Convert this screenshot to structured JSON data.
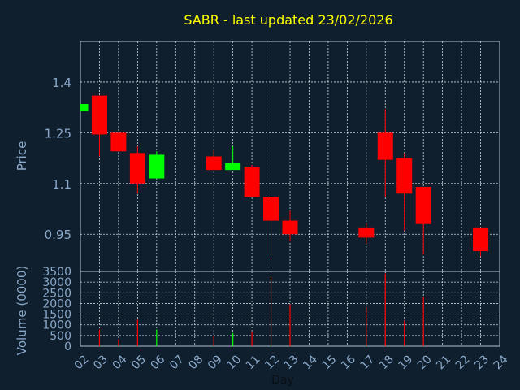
{
  "colors": {
    "background": "#0f1f2e",
    "title": "#ffff00",
    "axis_text": "#8aa8c8",
    "grid": "#cfd6de",
    "up": "#00ff00",
    "down": "#ff0000"
  },
  "chart_data": {
    "type": "candlestick",
    "title": "SABR - last updated 23/02/2026",
    "xlabel": "Day",
    "price_ylabel": "Price",
    "volume_ylabel": "Volume (0000)",
    "x_ticks": [
      "02",
      "03",
      "04",
      "05",
      "06",
      "07",
      "08",
      "09",
      "10",
      "11",
      "12",
      "13",
      "14",
      "15",
      "16",
      "17",
      "18",
      "19",
      "20",
      "21",
      "22",
      "23",
      "24"
    ],
    "price_ticks": [
      "1.4",
      "1.25",
      "1.1",
      "0.95"
    ],
    "price_tick_values": [
      1.4,
      1.25,
      1.1,
      0.95
    ],
    "price_ylim": [
      0.84,
      1.52
    ],
    "volume_ticks": [
      "3500",
      "3000",
      "2500",
      "2000",
      "1500",
      "1000",
      "500",
      "0"
    ],
    "volume_tick_values": [
      3500,
      3000,
      2500,
      2000,
      1500,
      1000,
      500,
      0
    ],
    "volume_ylim": [
      0,
      3500
    ],
    "candles": [
      {
        "day": "02",
        "open": 1.315,
        "close": 1.335,
        "high": 1.335,
        "low": 1.315
      },
      {
        "day": "03",
        "open": 1.36,
        "close": 1.245,
        "high": 1.36,
        "low": 1.18
      },
      {
        "day": "04",
        "open": 1.25,
        "close": 1.195,
        "high": 1.25,
        "low": 1.195
      },
      {
        "day": "05",
        "open": 1.19,
        "close": 1.1,
        "high": 1.21,
        "low": 1.07
      },
      {
        "day": "06",
        "open": 1.115,
        "close": 1.185,
        "high": 1.195,
        "low": 1.115
      },
      {
        "day": "09",
        "open": 1.18,
        "close": 1.14,
        "high": 1.2,
        "low": 1.14
      },
      {
        "day": "10",
        "open": 1.14,
        "close": 1.16,
        "high": 1.21,
        "low": 1.14
      },
      {
        "day": "11",
        "open": 1.15,
        "close": 1.06,
        "high": 1.155,
        "low": 1.06
      },
      {
        "day": "12",
        "open": 1.06,
        "close": 0.99,
        "high": 1.06,
        "low": 0.89
      },
      {
        "day": "13",
        "open": 0.99,
        "close": 0.95,
        "high": 1.02,
        "low": 0.93
      },
      {
        "day": "17",
        "open": 0.97,
        "close": 0.94,
        "high": 0.985,
        "low": 0.92
      },
      {
        "day": "18",
        "open": 1.25,
        "close": 1.17,
        "high": 1.32,
        "low": 1.06
      },
      {
        "day": "19",
        "open": 1.175,
        "close": 1.07,
        "high": 1.19,
        "low": 0.96
      },
      {
        "day": "20",
        "open": 1.09,
        "close": 0.98,
        "high": 1.09,
        "low": 0.89
      },
      {
        "day": "23",
        "open": 0.97,
        "close": 0.9,
        "high": 0.97,
        "low": 0.885
      }
    ],
    "volumes": [
      {
        "day": "03",
        "value": 780,
        "dir": "down"
      },
      {
        "day": "04",
        "value": 320,
        "dir": "down"
      },
      {
        "day": "05",
        "value": 1250,
        "dir": "down"
      },
      {
        "day": "06",
        "value": 780,
        "dir": "up"
      },
      {
        "day": "09",
        "value": 480,
        "dir": "down"
      },
      {
        "day": "10",
        "value": 620,
        "dir": "up"
      },
      {
        "day": "11",
        "value": 700,
        "dir": "down"
      },
      {
        "day": "12",
        "value": 3250,
        "dir": "down"
      },
      {
        "day": "13",
        "value": 1950,
        "dir": "down"
      },
      {
        "day": "17",
        "value": 1850,
        "dir": "down"
      },
      {
        "day": "18",
        "value": 3400,
        "dir": "down"
      },
      {
        "day": "19",
        "value": 1200,
        "dir": "down"
      },
      {
        "day": "20",
        "value": 2300,
        "dir": "down"
      }
    ]
  }
}
